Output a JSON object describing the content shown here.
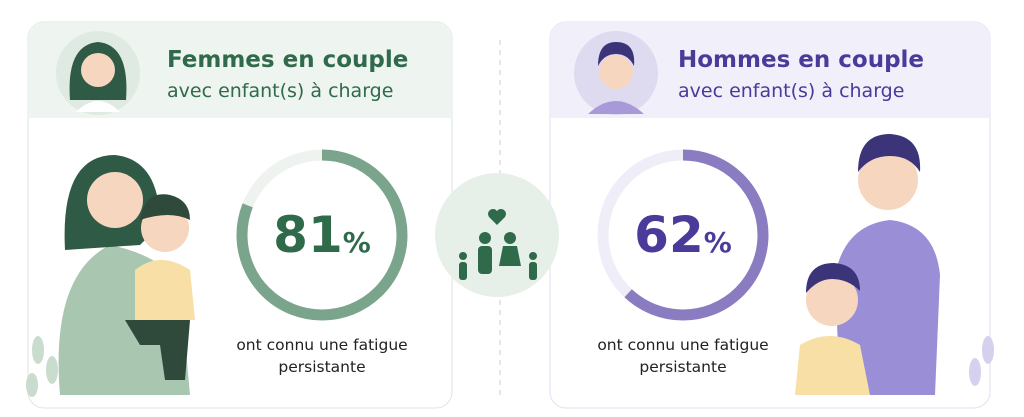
{
  "chart_data": [
    {
      "type": "donut",
      "title": "Femmes en couple",
      "subtitle": "avec enfant(s) à charge",
      "value": 81,
      "unit": "%",
      "caption": [
        "ont connu une fatigue",
        "persistante"
      ],
      "color": "#7aa58c",
      "track": "#eef3ef",
      "text_color": "#2f6a4a",
      "ylim": [
        0,
        100
      ]
    },
    {
      "type": "donut",
      "title": "Hommes en couple",
      "subtitle": "avec enfant(s) à charge",
      "value": 62,
      "unit": "%",
      "caption": [
        "ont connu une fatigue",
        "persistante"
      ],
      "color": "#8b7cc2",
      "track": "#efedf7",
      "text_color": "#4a3a9a",
      "ylim": [
        0,
        100
      ]
    }
  ]
}
